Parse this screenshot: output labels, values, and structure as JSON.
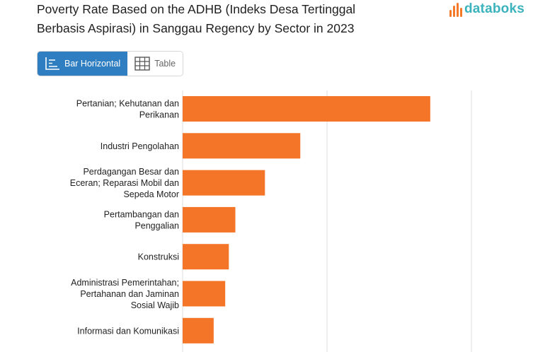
{
  "title": "Poverty Rate Based on the ADHB (Indeks Desa Tertinggal Berbasis Aspirasi) in Sanggau Regency by Sector in 2023",
  "logo": {
    "text": "databoks",
    "colors": [
      "#f47a2a",
      "#3ab3bd"
    ]
  },
  "tabs": [
    {
      "label": "Bar Horizontal",
      "icon": "bar-chart-icon",
      "active": true
    },
    {
      "label": "Table",
      "icon": "table-icon",
      "active": false
    }
  ],
  "colors": {
    "bar": "#f47428",
    "grid": "#dddddd",
    "tab_active": "#2f7ec2"
  },
  "chart_data": {
    "type": "bar",
    "orientation": "horizontal",
    "categories": [
      [
        "Pertanian; Kehutanan dan",
        "Perikanan"
      ],
      [
        "Industri Pengolahan"
      ],
      [
        "Perdagangan Besar dan",
        "Eceran; Reparasi Mobil dan",
        "Sepeda Motor"
      ],
      [
        "Pertambangan dan",
        "Penggalian"
      ],
      [
        "Konstruksi"
      ],
      [
        "Administrasi Pemerintahan;",
        "Pertahanan dan Jaminan",
        "Sosial Wajib"
      ],
      [
        "Informasi dan Komunikasi"
      ]
    ],
    "values": [
      34.3,
      16.3,
      11.4,
      7.3,
      6.4,
      5.9,
      4.3
    ],
    "xlim": [
      0,
      40
    ],
    "grid": true,
    "title": "Poverty Rate Based on the ADHB (Indeks Desa Tertinggal Berbasis Aspirasi) in Sanggau Regency by Sector in 2023"
  }
}
